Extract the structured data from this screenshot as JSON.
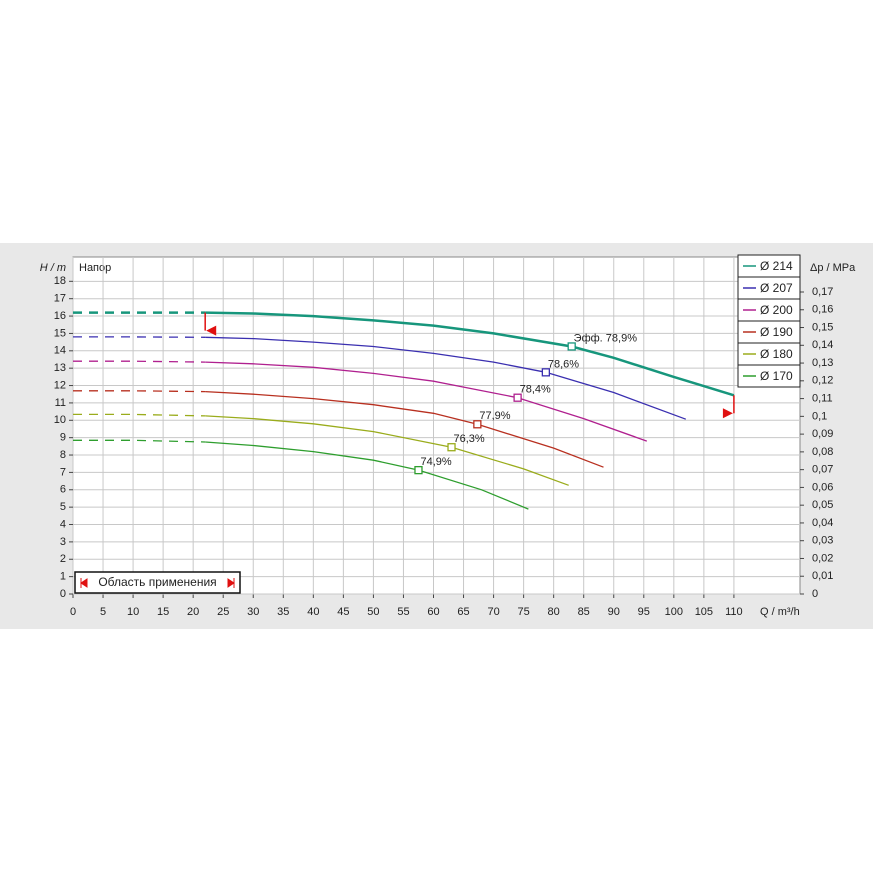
{
  "chart_data": {
    "type": "line",
    "title": "Напор",
    "y_label": "H / m",
    "y2_label": "Δp / MPa",
    "x_label": "Q / m³/h",
    "xlim": [
      0,
      121
    ],
    "ylim": [
      0,
      19.4
    ],
    "y2lim": [
      0,
      0.1897
    ],
    "xticks": [
      0,
      5,
      10,
      15,
      20,
      25,
      30,
      35,
      40,
      45,
      50,
      55,
      60,
      65,
      70,
      75,
      80,
      85,
      90,
      95,
      100,
      105,
      110
    ],
    "yticks": [
      0,
      1,
      2,
      3,
      4,
      5,
      6,
      7,
      8,
      9,
      10,
      11,
      12,
      13,
      14,
      15,
      16,
      17,
      18
    ],
    "y2ticks": [
      0,
      {
        "value": 0.01,
        "label": "0,01"
      },
      {
        "value": 0.02,
        "label": "0,02"
      },
      {
        "value": 0.03,
        "label": "0,03"
      },
      {
        "value": 0.04,
        "label": "0,04"
      },
      {
        "value": 0.05,
        "label": "0,05"
      },
      {
        "value": 0.06,
        "label": "0,06"
      },
      {
        "value": 0.07,
        "label": "0,07"
      },
      {
        "value": 0.08,
        "label": "0,08"
      },
      {
        "value": 0.09,
        "label": "0,09"
      },
      {
        "value": 0.1,
        "label": "0,1"
      },
      {
        "value": 0.11,
        "label": "0,11"
      },
      {
        "value": 0.12,
        "label": "0,12"
      },
      {
        "value": 0.13,
        "label": "0,13"
      },
      {
        "value": 0.14,
        "label": "0,14"
      },
      {
        "value": 0.15,
        "label": "0,15"
      },
      {
        "value": 0.16,
        "label": "0,16"
      },
      {
        "value": 0.17,
        "label": "0,17"
      }
    ],
    "grid": true,
    "legend": "top-right",
    "dashed_x_max": 22,
    "application_range": {
      "label": "Область применения",
      "q_min": 22,
      "q_max": 110
    },
    "series": [
      {
        "name": "Ø 214",
        "color": "#17967c",
        "width": 2.5,
        "x": [
          0,
          10,
          22,
          30,
          40,
          50,
          60,
          70,
          83,
          90,
          100,
          110
        ],
        "values": [
          16.2,
          16.2,
          16.2,
          16.15,
          16.0,
          15.75,
          15.45,
          15.0,
          14.25,
          13.6,
          12.5,
          11.44
        ],
        "bep": {
          "x": 83,
          "y": 14.25,
          "label": "Эфф.  78,9%"
        }
      },
      {
        "name": "Ø 207",
        "color": "#3a2fb0",
        "width": 1.3,
        "x": [
          0,
          10,
          22,
          30,
          40,
          50,
          60,
          70,
          78.7,
          90,
          102
        ],
        "values": [
          14.8,
          14.8,
          14.78,
          14.7,
          14.5,
          14.25,
          13.85,
          13.35,
          12.76,
          11.6,
          10.06
        ],
        "bep": {
          "x": 78.7,
          "y": 12.76,
          "label": "78,6%"
        }
      },
      {
        "name": "Ø 200",
        "color": "#b0208f",
        "width": 1.3,
        "x": [
          0,
          10,
          22,
          30,
          40,
          50,
          60,
          74,
          85,
          95.5
        ],
        "values": [
          13.4,
          13.4,
          13.35,
          13.25,
          13.05,
          12.7,
          12.25,
          11.3,
          10.1,
          8.8
        ],
        "bep": {
          "x": 74,
          "y": 11.3,
          "label": "78,4%"
        }
      },
      {
        "name": "Ø 190",
        "color": "#b83020",
        "width": 1.3,
        "x": [
          0,
          10,
          22,
          30,
          40,
          50,
          60,
          67.3,
          80,
          88.3
        ],
        "values": [
          11.7,
          11.7,
          11.65,
          11.5,
          11.25,
          10.9,
          10.4,
          9.77,
          8.4,
          7.3
        ],
        "bep": {
          "x": 67.3,
          "y": 9.77,
          "label": "77,9%"
        }
      },
      {
        "name": "Ø 180",
        "color": "#9aac1c",
        "width": 1.3,
        "x": [
          0,
          10,
          22,
          30,
          40,
          50,
          63,
          75,
          82.5
        ],
        "values": [
          10.34,
          10.34,
          10.25,
          10.1,
          9.8,
          9.35,
          8.45,
          7.2,
          6.26
        ],
        "bep": {
          "x": 63,
          "y": 8.45,
          "label": "76,3%"
        }
      },
      {
        "name": "Ø 170",
        "color": "#2e9e2e",
        "width": 1.3,
        "x": [
          0,
          10,
          22,
          30,
          40,
          50,
          57.5,
          68,
          75.8
        ],
        "values": [
          8.85,
          8.85,
          8.75,
          8.55,
          8.2,
          7.7,
          7.13,
          6.0,
          4.89
        ],
        "bep": {
          "x": 57.5,
          "y": 7.13,
          "label": "74,9%"
        }
      }
    ]
  }
}
